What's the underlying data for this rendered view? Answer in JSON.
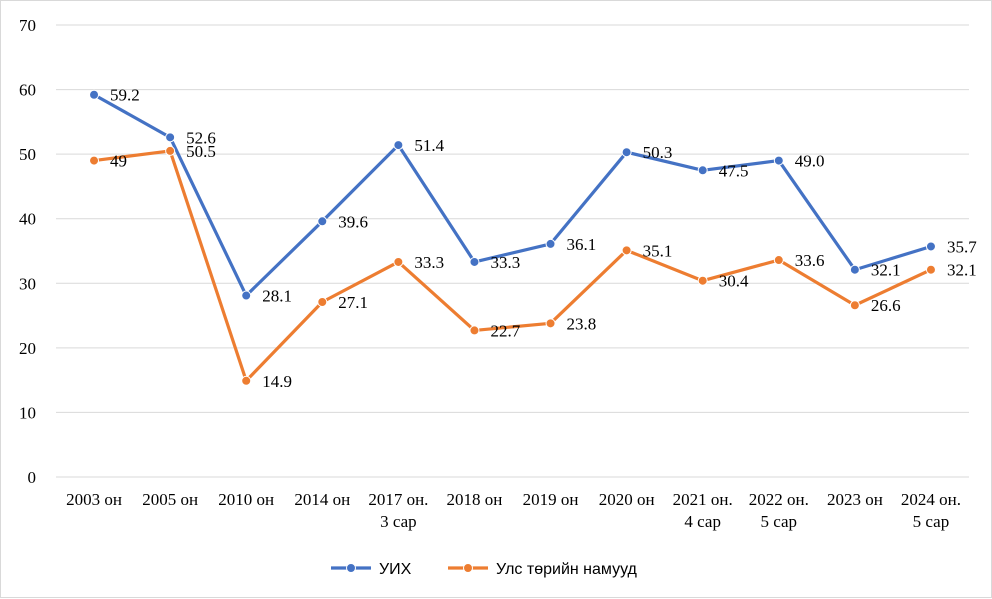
{
  "chart_data": {
    "type": "line",
    "categories": [
      [
        "2003 он"
      ],
      [
        "2005 он"
      ],
      [
        "2010 он"
      ],
      [
        "2014 он"
      ],
      [
        "2017 он.",
        "3 сар"
      ],
      [
        "2018 он"
      ],
      [
        "2019 он"
      ],
      [
        "2020 он"
      ],
      [
        "2021 он.",
        "4 сар"
      ],
      [
        "2022 он.",
        "5 сар"
      ],
      [
        "2023 он"
      ],
      [
        "2024 он.",
        "5 сар"
      ]
    ],
    "series": [
      {
        "name": "УИХ",
        "color": "#4472C4",
        "values": [
          59.2,
          52.6,
          28.1,
          39.6,
          51.4,
          33.3,
          36.1,
          50.3,
          47.5,
          49.0,
          32.1,
          35.7
        ],
        "labels": [
          "59.2",
          "52.6",
          "28.1",
          "39.6",
          "51.4",
          "33.3",
          "36.1",
          "50.3",
          "47.5",
          "49.0",
          "32.1",
          "35.7"
        ]
      },
      {
        "name": "Улс төрийн намууд",
        "color": "#ED7D31",
        "values": [
          49,
          50.5,
          14.9,
          27.1,
          33.3,
          22.7,
          23.8,
          35.1,
          30.4,
          33.6,
          26.6,
          32.1
        ],
        "labels": [
          "49",
          "50.5",
          "14.9",
          "27.1",
          "33.3",
          "22.7",
          "23.8",
          "35.1",
          "30.4",
          "33.6",
          "26.6",
          "32.1"
        ]
      }
    ],
    "yticks": [
      "0",
      "10",
      "20",
      "30",
      "40",
      "50",
      "60",
      "70"
    ],
    "ylim": [
      0,
      70
    ],
    "grid": true,
    "legend_position": "bottom"
  }
}
